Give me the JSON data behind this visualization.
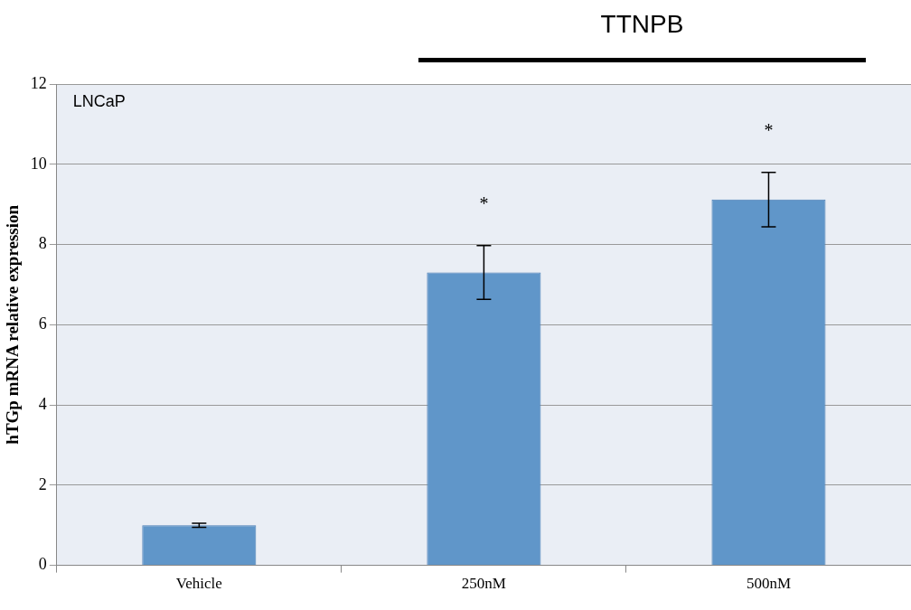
{
  "chart_data": {
    "type": "bar",
    "ylabel": "hTGp mRNA relative expression",
    "categories": [
      "Vehicle",
      "250nM",
      "500nM"
    ],
    "values": [
      1.0,
      7.3,
      9.12
    ],
    "errors": [
      0.05,
      0.67,
      0.68
    ],
    "color": "#6096c9",
    "ylim": [
      0,
      12
    ],
    "yticks": [
      0,
      2,
      4,
      6,
      8,
      10,
      12
    ],
    "grid": "y",
    "legend": false,
    "annotations": [
      "LNCaP",
      "TTNPB",
      "*",
      "*"
    ]
  }
}
